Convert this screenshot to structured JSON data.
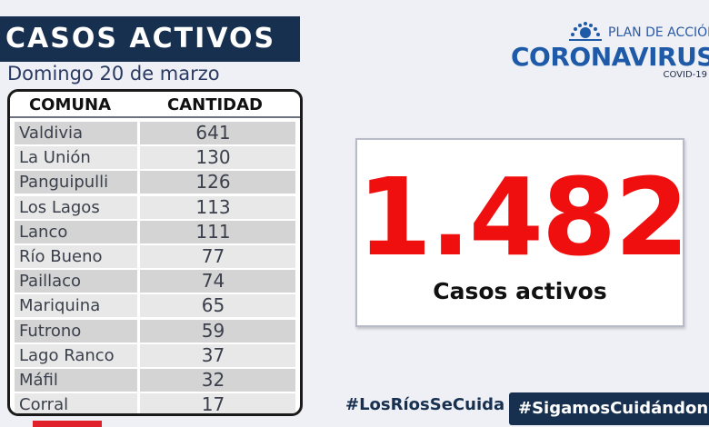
{
  "header": {
    "title": "CASOS ACTIVOS",
    "date": "Domingo 20 de marzo"
  },
  "table": {
    "headers": {
      "comuna": "COMUNA",
      "cantidad": "CANTIDAD"
    },
    "rows": [
      {
        "comuna": "Valdivia",
        "cantidad": "641"
      },
      {
        "comuna": "La Unión",
        "cantidad": "130"
      },
      {
        "comuna": "Panguipulli",
        "cantidad": "126"
      },
      {
        "comuna": "Los Lagos",
        "cantidad": "113"
      },
      {
        "comuna": "Lanco",
        "cantidad": "111"
      },
      {
        "comuna": "Río Bueno",
        "cantidad": "77"
      },
      {
        "comuna": "Paillaco",
        "cantidad": "74"
      },
      {
        "comuna": "Mariquina",
        "cantidad": "65"
      },
      {
        "comuna": "Futrono",
        "cantidad": "59"
      },
      {
        "comuna": "Lago Ranco",
        "cantidad": "37"
      },
      {
        "comuna": "Máfil",
        "cantidad": "32"
      },
      {
        "comuna": "Corral",
        "cantidad": "17"
      }
    ]
  },
  "logo": {
    "plan": "PLAN DE ACCIÓN",
    "name": "CORONAVIRUS",
    "sub": "COVID-19"
  },
  "summary": {
    "total": "1.482",
    "label": "Casos activos"
  },
  "hashtags": {
    "left": "#LosRíosSeCuida",
    "right": "#SigamosCuidándonos"
  },
  "colors": {
    "navy": "#17304f",
    "red": "#f00f0f",
    "brand_blue": "#1f5aa8"
  }
}
